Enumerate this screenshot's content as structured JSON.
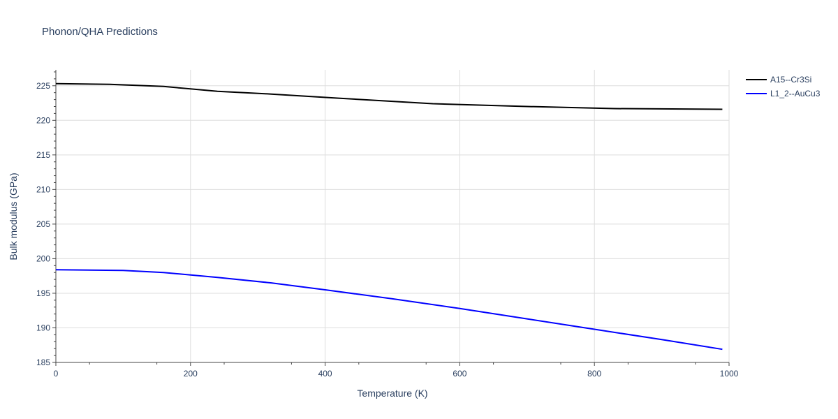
{
  "chart_data": {
    "type": "line",
    "title": "Phonon/QHA Predictions",
    "xlabel": "Temperature (K)",
    "ylabel": "Bulk modulus (GPa)",
    "xlim": [
      0,
      1000
    ],
    "ylim": [
      185,
      227.3
    ],
    "xticks": [
      0,
      200,
      400,
      600,
      800,
      1000
    ],
    "yticks": [
      185,
      190,
      195,
      200,
      205,
      210,
      215,
      220,
      225
    ],
    "grid": true,
    "legend_position": "top-right",
    "series": [
      {
        "name": "A15--Cr3Si",
        "color": "#000000",
        "x": [
          0,
          80,
          160,
          240,
          320,
          420,
          560,
          700,
          830,
          990
        ],
        "y": [
          225.3,
          225.2,
          224.9,
          224.2,
          223.8,
          223.2,
          222.4,
          222.0,
          221.7,
          221.6
        ]
      },
      {
        "name": "L1_2--AuCu3",
        "color": "#0000ff",
        "x": [
          0,
          100,
          160,
          240,
          320,
          400,
          500,
          600,
          700,
          800,
          900,
          990
        ],
        "y": [
          198.4,
          198.3,
          198.0,
          197.3,
          196.5,
          195.5,
          194.2,
          192.8,
          191.3,
          189.8,
          188.3,
          186.9
        ]
      }
    ]
  }
}
